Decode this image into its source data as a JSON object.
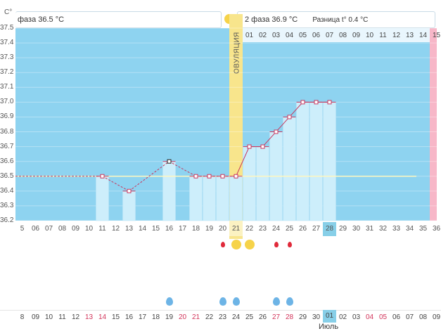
{
  "unit": "C°",
  "phase1_label": "фаза 36.5 °C",
  "phase2_label": "2 фаза 36.9 °C",
  "diff_label": "Разница t° 0.4 °C",
  "ovulation_label": "ОВУЛЯЦИЯ",
  "month_label": "Июль",
  "highlight_day": "28",
  "next_cycle_start": "01",
  "colors": {
    "sky": "#8ed3f0",
    "bar": "#cdeefb",
    "ovulation": "#f8e58c",
    "pink": "#f7b7c8",
    "line": "#c8385f",
    "grid": "#d8ecf7"
  },
  "top_cycle_days": [
    "01",
    "02",
    "03",
    "04",
    "05",
    "06",
    "07",
    "08",
    "09",
    "10",
    "11",
    "12",
    "13",
    "14",
    "15"
  ],
  "chart_data": {
    "type": "line",
    "ylim": [
      36.2,
      37.5
    ],
    "yticks": [
      "37.5",
      "37.4",
      "37.3",
      "37.2",
      "37.1",
      "37.0",
      "36.9",
      "36.8",
      "36.7",
      "36.6",
      "36.5",
      "36.4",
      "36.3",
      "36.2"
    ],
    "xticks": [
      "5",
      "06",
      "07",
      "08",
      "09",
      "10",
      "11",
      "12",
      "13",
      "14",
      "15",
      "16",
      "17",
      "18",
      "19",
      "20",
      "21",
      "22",
      "23",
      "24",
      "25",
      "26",
      "27",
      "28",
      "29",
      "30",
      "31",
      "32",
      "33",
      "34",
      "35",
      "36"
    ],
    "coverline": 36.5,
    "points": [
      {
        "day": "11",
        "value": 36.5
      },
      {
        "day": "13",
        "value": 36.4
      },
      {
        "day": "16",
        "value": 36.6
      },
      {
        "day": "18",
        "value": 36.5
      },
      {
        "day": "19",
        "value": 36.5
      },
      {
        "day": "20",
        "value": 36.5
      },
      {
        "day": "21",
        "value": 36.5
      },
      {
        "day": "22",
        "value": 36.7
      },
      {
        "day": "23",
        "value": 36.7
      },
      {
        "day": "24",
        "value": 36.8
      },
      {
        "day": "25",
        "value": 36.9
      },
      {
        "day": "26",
        "value": 37.0
      },
      {
        "day": "27",
        "value": 37.0
      },
      {
        "day": "28",
        "value": 37.0
      }
    ]
  },
  "symbols_top": [
    {
      "day": "20",
      "icon": "blood-drop-icon"
    },
    {
      "day": "21",
      "icon": "sun-icon"
    },
    {
      "day": "22",
      "icon": "sun-icon"
    },
    {
      "day": "24",
      "icon": "blood-drop-icon"
    },
    {
      "day": "25",
      "icon": "blood-drop-icon"
    }
  ],
  "symbols_bottom": [
    {
      "day": "16",
      "icon": "water-drop-icon"
    },
    {
      "day": "20",
      "icon": "water-drop-icon"
    },
    {
      "day": "21",
      "icon": "water-drop-icon"
    },
    {
      "day": "24",
      "icon": "water-drop-icon"
    },
    {
      "day": "25",
      "icon": "water-drop-icon"
    }
  ],
  "calendar_days": [
    {
      "d": "8",
      "red": false
    },
    {
      "d": "09",
      "red": false
    },
    {
      "d": "10",
      "red": false
    },
    {
      "d": "11",
      "red": false
    },
    {
      "d": "12",
      "red": false
    },
    {
      "d": "13",
      "red": true
    },
    {
      "d": "14",
      "red": true
    },
    {
      "d": "15",
      "red": false
    },
    {
      "d": "16",
      "red": false
    },
    {
      "d": "17",
      "red": false
    },
    {
      "d": "18",
      "red": false
    },
    {
      "d": "19",
      "red": false
    },
    {
      "d": "20",
      "red": true
    },
    {
      "d": "21",
      "red": true
    },
    {
      "d": "22",
      "red": false
    },
    {
      "d": "23",
      "red": false
    },
    {
      "d": "24",
      "red": false
    },
    {
      "d": "25",
      "red": false
    },
    {
      "d": "26",
      "red": false
    },
    {
      "d": "27",
      "red": true
    },
    {
      "d": "28",
      "red": true
    },
    {
      "d": "29",
      "red": false
    },
    {
      "d": "30",
      "red": false
    },
    {
      "d": "01",
      "red": false
    },
    {
      "d": "02",
      "red": false
    },
    {
      "d": "03",
      "red": false
    },
    {
      "d": "04",
      "red": true
    },
    {
      "d": "05",
      "red": true
    },
    {
      "d": "06",
      "red": false
    },
    {
      "d": "07",
      "red": false
    },
    {
      "d": "08",
      "red": false
    },
    {
      "d": "09",
      "red": false
    }
  ]
}
